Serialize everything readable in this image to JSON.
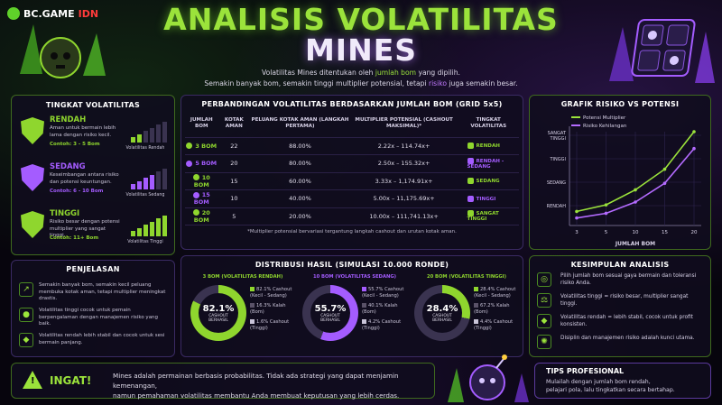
{
  "brand": {
    "name": "BC.GAME",
    "suffix": "IDN"
  },
  "title": {
    "line1": "ANALISIS VOLATILITAS",
    "line2": "MINES"
  },
  "intro": {
    "a": "Volatilitas Mines ditentukan oleh ",
    "a_hl": "jumlah bom",
    "a2": " yang dipilih.",
    "b": "Semakin banyak bom, semakin tinggi multiplier potensial, tetapi ",
    "b_hl": "risiko",
    "b2": " juga semakin besar."
  },
  "tingkat": {
    "title": "TINGKAT VOLATILITAS",
    "items": [
      {
        "name": "RENDAH",
        "desc": "Aman untuk bermain lebih lama dengan risiko kecil.",
        "example": "Contoh: 3 - 5 Bom",
        "bar_label": "Volatilitas Rendah",
        "color": "#8fd62e",
        "level": 0.33
      },
      {
        "name": "SEDANG",
        "desc": "Keseimbangan antara risiko dan potensi keuntungan.",
        "example": "Contoh: 6 - 10 Bom",
        "bar_label": "Volatilitas Sedang",
        "color": "#a45cff",
        "level": 0.66
      },
      {
        "name": "TINGGI",
        "desc": "Risiko besar dengan potensi multiplier yang sangat tinggi.",
        "example": "Contoh: 11+ Bom",
        "bar_label": "Volatilitas Tinggi",
        "color": "#8fd62e",
        "level": 1
      }
    ]
  },
  "penjelasan": {
    "title": "PENJELASAN",
    "items": [
      "Semakin banyak bom, semakin kecil peluang membuka kotak aman, tetapi multiplier meningkat drastis.",
      "Volatilitas tinggi cocok untuk pemain berpengalaman dengan manajemen risiko yang baik.",
      "Volatilitas rendah lebih stabil dan cocok untuk sesi bermain panjang."
    ]
  },
  "perbandingan": {
    "title": "PERBANDINGAN VOLATILITAS BERDASARKAN JUMLAH BOM (GRID 5x5)",
    "headers": [
      "JUMLAH BOM",
      "KOTAK AMAN",
      "PELUANG KOTAK AMAN (LANGKAH PERTAMA)",
      "MULTIPLIER POTENSIAL (CASHOUT MAKSIMAL)*",
      "TINGKAT VOLATILITAS"
    ],
    "rows": [
      {
        "bom": "3 BOM",
        "aman": "22",
        "peluang": "88.00%",
        "mult": "2.22x – 114.74x+",
        "tingkat": "RENDAH",
        "color": "#8fd62e"
      },
      {
        "bom": "5 BOM",
        "aman": "20",
        "peluang": "80.00%",
        "mult": "2.50x – 155.32x+",
        "tingkat": "RENDAH - SEDANG",
        "color": "#a45cff"
      },
      {
        "bom": "10 BOM",
        "aman": "15",
        "peluang": "60.00%",
        "mult": "3.33x – 1,174.91x+",
        "tingkat": "SEDANG",
        "color": "#8fd62e"
      },
      {
        "bom": "15 BOM",
        "aman": "10",
        "peluang": "40.00%",
        "mult": "5.00x – 11,175.69x+",
        "tingkat": "TINGGI",
        "color": "#a45cff"
      },
      {
        "bom": "20 BOM",
        "aman": "5",
        "peluang": "20.00%",
        "mult": "10.00x – 111,741.13x+",
        "tingkat": "SANGAT TINGGI",
        "color": "#8fd62e"
      }
    ],
    "note": "*Multiplier potensial bervariasi tergantung langkah cashout dan urutan kotak aman."
  },
  "grafik": {
    "title": "GRAFIK RISIKO VS POTENSI",
    "legend": [
      "Potensi Multiplier",
      "Risiko Kehilangan"
    ],
    "y_ticks": [
      "SANGAT TINGGI",
      "TINGGI",
      "SEDANG",
      "RENDAH"
    ],
    "x_ticks": [
      "3",
      "5",
      "10",
      "15",
      "20"
    ],
    "xlabel": "JUMLAH BOM"
  },
  "chart_data": {
    "type": "line",
    "title": "GRAFIK RISIKO VS POTENSI",
    "xlabel": "JUMLAH BOM",
    "x": [
      3,
      5,
      10,
      15,
      20
    ],
    "series": [
      {
        "name": "Potensi Multiplier",
        "values": [
          0.15,
          0.22,
          0.38,
          0.6,
          1.0
        ]
      },
      {
        "name": "Risiko Kehilangan",
        "values": [
          0.08,
          0.13,
          0.25,
          0.45,
          0.82
        ]
      }
    ],
    "y_ticks": [
      "RENDAH",
      "SEDANG",
      "TINGGI",
      "SANGAT TINGGI"
    ],
    "grid": true
  },
  "distribusi": {
    "title": "DISTRIBUSI HASIL (SIMULASI 10.000 RONDE)",
    "sims": [
      {
        "label": "3 BOM (VOLATILITAS RENDAH)",
        "pct": "82.1%",
        "sub": "CASHOUT BERHASIL",
        "value": 82.1,
        "color": "#8fd62e",
        "legend": [
          "82.1% Cashout (Kecil - Sedang)",
          "16.3% Kalah (Bom)",
          "1.6% Cashout (Tinggi)"
        ]
      },
      {
        "label": "10 BOM (VOLATILITAS SEDANG)",
        "pct": "55.7%",
        "sub": "CASHOUT BERHASIL",
        "value": 55.7,
        "color": "#a45cff",
        "legend": [
          "55.7% Cashout (Kecil - Sedang)",
          "40.1% Kalah (Bom)",
          "4.2% Cashout (Tinggi)"
        ]
      },
      {
        "label": "20 BOM (VOLATILITAS TINGGI)",
        "pct": "28.4%",
        "sub": "CASHOUT BERHASIL",
        "value": 28.4,
        "color": "#8fd62e",
        "legend": [
          "28.4% Cashout (Kecil - Sedang)",
          "67.2% Kalah (Bom)",
          "4.4% Cashout (Tinggi)"
        ]
      }
    ]
  },
  "kesimpulan": {
    "title": "KESIMPULAN ANALISIS",
    "items": [
      "Pilih jumlah bom sesuai gaya bermain dan toleransi risiko Anda.",
      "Volatilitas tinggi = risiko besar, multiplier sangat tinggi.",
      "Volatilitas rendah = lebih stabil, cocok untuk profit konsisten.",
      "Disiplin dan manajemen risiko adalah kunci utama."
    ]
  },
  "ingat": {
    "label": "INGAT!",
    "text1": "Mines adalah permainan berbasis probabilitas. Tidak ada strategi yang dapat menjamin kemenangan,",
    "text2": "namun pemahaman volatilitas membantu Anda membuat keputusan yang lebih cerdas."
  },
  "tips": {
    "title": "TIPS PROFESIONAL",
    "text1": "Mulailah dengan jumlah bom rendah,",
    "text2": "pelajari pola, lalu tingkatkan secara bertahap."
  }
}
